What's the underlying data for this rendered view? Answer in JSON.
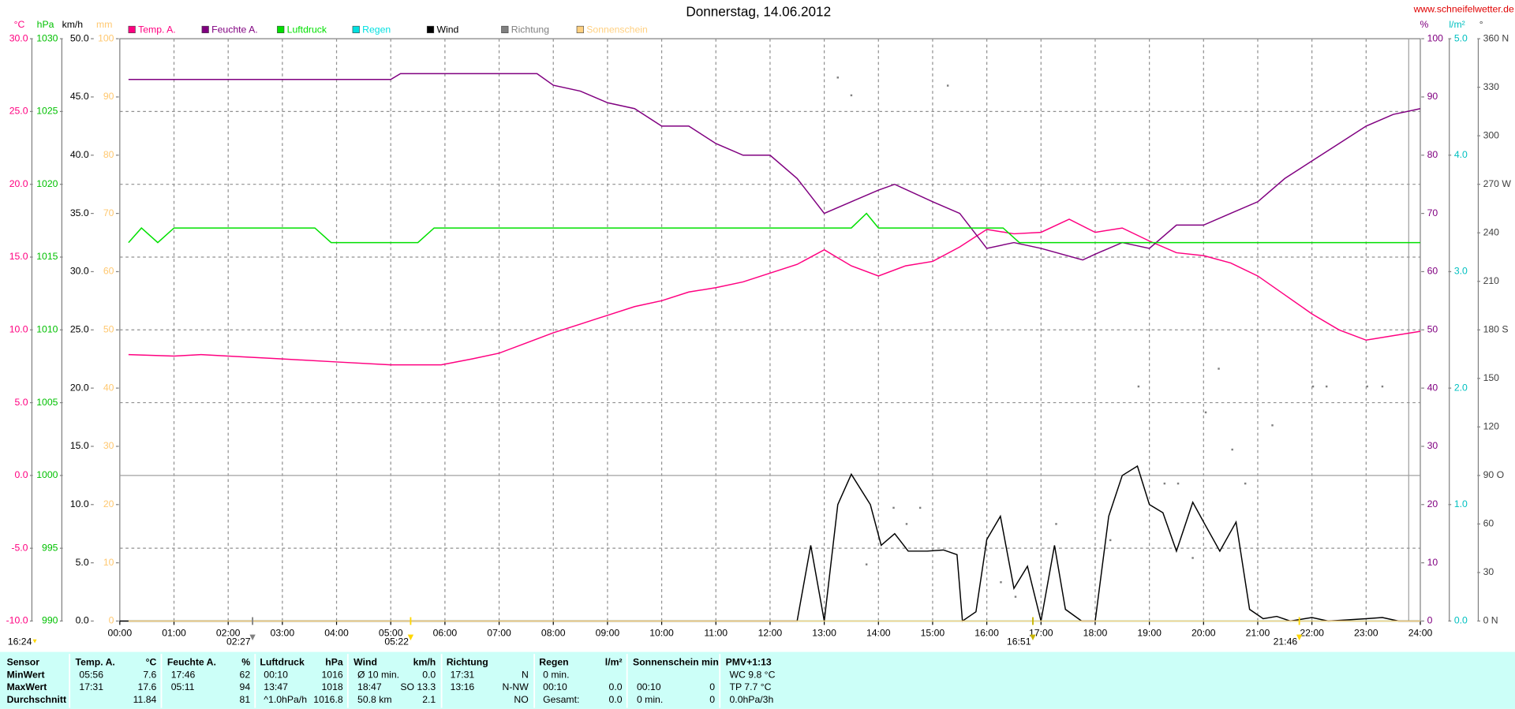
{
  "chart_data": {
    "type": "line",
    "title": "Donnerstag, 14.06.2012",
    "source": "www.schneifelwetter.de",
    "day_length": "16:24",
    "grid": true,
    "xlim": [
      0,
      24
    ],
    "xticks": [
      {
        "value": 0,
        "label": "00:00"
      },
      {
        "value": 1,
        "label": "01:00"
      },
      {
        "value": 2,
        "label": "02:00"
      },
      {
        "value": 3,
        "label": "03:00"
      },
      {
        "value": 4,
        "label": "04:00"
      },
      {
        "value": 5,
        "label": "05:00"
      },
      {
        "value": 6,
        "label": "06:00"
      },
      {
        "value": 7,
        "label": "07:00"
      },
      {
        "value": 8,
        "label": "08:00"
      },
      {
        "value": 9,
        "label": "09:00"
      },
      {
        "value": 10,
        "label": "10:00"
      },
      {
        "value": 11,
        "label": "11:00"
      },
      {
        "value": 12,
        "label": "12:00"
      },
      {
        "value": 13,
        "label": "13:00"
      },
      {
        "value": 14,
        "label": "14:00"
      },
      {
        "value": 15,
        "label": "15:00"
      },
      {
        "value": 16,
        "label": "16:00"
      },
      {
        "value": 17,
        "label": "17:00"
      },
      {
        "value": 18,
        "label": "18:00"
      },
      {
        "value": 19,
        "label": "19:00"
      },
      {
        "value": 20,
        "label": "20:00"
      },
      {
        "value": 21,
        "label": "21:00"
      },
      {
        "value": 22,
        "label": "22:00"
      },
      {
        "value": 23,
        "label": "23:00"
      },
      {
        "value": 24,
        "label": "24:00"
      }
    ],
    "y_axes": [
      {
        "unit": "°C",
        "color": "#ff0080",
        "ylim": [
          -10,
          30
        ],
        "yticks": [
          {
            "value": 30,
            "label": "30.0"
          },
          {
            "value": 25,
            "label": "25.0"
          },
          {
            "value": 20,
            "label": "20.0"
          },
          {
            "value": 15,
            "label": "15.0"
          },
          {
            "value": 10,
            "label": "10.0"
          },
          {
            "value": 5,
            "label": "5.0"
          },
          {
            "value": 0,
            "label": "0.0"
          },
          {
            "value": -5,
            "label": "-5.0"
          },
          {
            "value": -10,
            "label": "-10.0"
          }
        ]
      },
      {
        "unit": "hPa",
        "color": "#00c000",
        "ylim": [
          990,
          1030
        ],
        "yticks": [
          1030,
          1025,
          1020,
          1015,
          1010,
          1005,
          1000,
          995,
          990
        ]
      },
      {
        "unit": "km/h",
        "color": "#000000",
        "ylim": [
          0,
          50
        ],
        "yticks": [
          {
            "value": 50,
            "label": "50.0"
          },
          {
            "value": 45,
            "label": "45.0"
          },
          {
            "value": 40,
            "label": "40.0"
          },
          {
            "value": 35,
            "label": "35.0"
          },
          {
            "value": 30,
            "label": "30.0"
          },
          {
            "value": 25,
            "label": "25.0"
          },
          {
            "value": 20,
            "label": "20.0"
          },
          {
            "value": 15,
            "label": "15.0"
          },
          {
            "value": 10,
            "label": "10.0"
          },
          {
            "value": 5,
            "label": "5.0"
          },
          {
            "value": 0,
            "label": "0.0"
          }
        ]
      },
      {
        "unit": "mm",
        "color": "#ffc870",
        "ylim": [
          0,
          100
        ],
        "yticks": [
          100,
          90,
          80,
          70,
          60,
          50,
          40,
          30,
          20,
          10,
          0
        ]
      },
      {
        "unit": "%",
        "color": "#800080",
        "ylim": [
          0,
          100
        ],
        "yticks": [
          100,
          90,
          80,
          70,
          60,
          50,
          40,
          30,
          20,
          10,
          0
        ]
      },
      {
        "unit": "l/m²",
        "color": "#00c0c0",
        "ylim": [
          0,
          5
        ],
        "yticks": [
          {
            "value": 5,
            "label": "5.0"
          },
          {
            "value": 4,
            "label": "4.0"
          },
          {
            "value": 3,
            "label": "3.0"
          },
          {
            "value": 2,
            "label": "2.0"
          },
          {
            "value": 1,
            "label": "1.0"
          },
          {
            "value": 0,
            "label": "0.0"
          }
        ]
      },
      {
        "unit": "°",
        "color": "#404040",
        "ylim": [
          0,
          360
        ],
        "yticks": [
          {
            "value": 360,
            "label": "360 N"
          },
          330,
          300,
          {
            "value": 270,
            "label": "270 W"
          },
          240,
          210,
          {
            "value": 180,
            "label": "180 S"
          },
          150,
          120,
          {
            "value": 90,
            "label": "90 O"
          },
          60,
          30,
          {
            "value": 0,
            "label": "0 N"
          }
        ]
      }
    ],
    "series": [
      {
        "name": "Temp. A.",
        "color": "#ff0080",
        "axis": 0,
        "type": "line",
        "x": [
          0.16,
          1,
          1.5,
          2,
          3,
          4,
          5,
          5.93,
          6.5,
          7,
          7.5,
          8,
          8.5,
          9,
          9.5,
          10,
          10.5,
          11,
          11.5,
          12,
          12.5,
          13,
          13.5,
          14,
          14.5,
          15,
          15.5,
          16,
          16.5,
          17,
          17.52,
          18,
          18.5,
          19,
          19.5,
          20,
          20.5,
          21,
          21.5,
          22,
          22.5,
          23,
          23.5,
          24
        ],
        "values": [
          8.3,
          8.2,
          8.3,
          8.2,
          8,
          7.8,
          7.6,
          7.6,
          8,
          8.4,
          9.1,
          9.8,
          10.4,
          11,
          11.6,
          12,
          12.6,
          12.9,
          13.3,
          13.9,
          14.5,
          15.5,
          14.4,
          13.7,
          14.4,
          14.7,
          15.7,
          16.9,
          16.6,
          16.7,
          17.6,
          16.7,
          17,
          16.1,
          15.3,
          15.1,
          14.6,
          13.7,
          12.4,
          11.1,
          10,
          9.3,
          9.6,
          9.9
        ]
      },
      {
        "name": "Feuchte A.",
        "color": "#800080",
        "axis": 4,
        "type": "line",
        "x": [
          0.16,
          1,
          2,
          3,
          4,
          5,
          5.18,
          6,
          7,
          7.7,
          8,
          8.5,
          9,
          9.5,
          10,
          10.5,
          11,
          11.5,
          12,
          12.5,
          12.75,
          13,
          13.5,
          14,
          14.3,
          15,
          15.5,
          16,
          16.5,
          17,
          17.77,
          18,
          18.5,
          19,
          19.5,
          20,
          20.5,
          21,
          21.5,
          22,
          22.5,
          23,
          23.5,
          24
        ],
        "values": [
          93,
          93,
          93,
          93,
          93,
          93,
          94,
          94,
          94,
          94,
          92,
          91,
          89,
          88,
          85,
          85,
          82,
          80,
          80,
          76,
          73,
          70,
          72,
          74,
          75,
          72,
          70,
          64,
          65,
          64,
          62,
          63,
          65,
          64,
          68,
          68,
          70,
          72,
          76,
          79,
          82,
          85,
          87,
          88
        ]
      },
      {
        "name": "Luftdruck",
        "color": "#00e000",
        "axis": 1,
        "type": "line",
        "x": [
          0.16,
          0.4,
          0.7,
          1,
          3.6,
          3.9,
          5.5,
          5.8,
          13.5,
          13.78,
          14,
          16.3,
          16.6,
          24
        ],
        "values": [
          1016,
          1017,
          1016,
          1017,
          1017,
          1016,
          1016,
          1017,
          1017,
          1018,
          1017,
          1017,
          1016,
          1016
        ]
      },
      {
        "name": "Regen",
        "color": "#00e0e0",
        "axis": 5,
        "type": "line",
        "x": [
          0.16,
          24
        ],
        "values": [
          0,
          0
        ]
      },
      {
        "name": "Wind",
        "color": "#000000",
        "axis": 2,
        "type": "line",
        "x": [
          0,
          12.5,
          12.75,
          13,
          13.25,
          13.5,
          13.85,
          14.05,
          14.3,
          14.55,
          14.9,
          15.2,
          15.45,
          15.55,
          15.8,
          16,
          16.25,
          16.5,
          16.75,
          17,
          17.25,
          17.45,
          17.75,
          18,
          18.25,
          18.5,
          18.78,
          19,
          19.25,
          19.5,
          19.8,
          20,
          20.3,
          20.6,
          20.85,
          21.1,
          21.35,
          21.6,
          22,
          22.3,
          23,
          23.3,
          23.6,
          24
        ],
        "values": [
          0,
          0,
          6.5,
          0,
          10,
          12.6,
          10,
          6.5,
          7.5,
          6,
          6,
          6.1,
          5.7,
          0,
          0.8,
          7,
          9,
          2.8,
          4.7,
          0,
          6.5,
          1,
          0,
          0,
          9,
          12.5,
          13.3,
          10,
          9.3,
          6,
          10.2,
          8.5,
          6,
          8.5,
          1,
          0.2,
          0.4,
          0,
          0.3,
          0,
          0.2,
          0.3,
          0,
          0
        ]
      },
      {
        "name": "Richtung",
        "color": "#808080",
        "axis": 6,
        "type": "scatter",
        "x": [
          13.25,
          13.5,
          15.28,
          13.78,
          14.28,
          14.52,
          14.77,
          16.26,
          16.53,
          17.28,
          18.28,
          18.8,
          19.28,
          19.53,
          19.8,
          20.04,
          20.28,
          20.53,
          20.77,
          21.27,
          22.02,
          22.27,
          23.02,
          23.3
        ],
        "values": [
          336,
          325,
          331,
          35,
          70,
          60,
          70,
          24,
          15,
          60,
          50,
          145,
          85,
          85,
          39,
          129,
          156,
          106,
          85,
          121,
          145,
          145,
          145,
          145
        ]
      },
      {
        "name": "Sonnenschein",
        "color": "#ffd080",
        "axis": 3,
        "type": "line",
        "x": [
          0.16,
          24
        ],
        "values": [
          0,
          0
        ]
      }
    ],
    "annotations": [
      {
        "x": 2.45,
        "label": "02:27",
        "color": "#808080"
      },
      {
        "x": 5.367,
        "label": "05:22",
        "color": "#ffd700"
      },
      {
        "x": 16.85,
        "label": "16:51",
        "color": "#c8b400"
      },
      {
        "x": 21.767,
        "label": "21:46",
        "color": "#ffd700"
      }
    ]
  },
  "table": {
    "sensor": {
      "header": "Sensor",
      "rows": [
        "MinWert",
        "MaxWert",
        "Durchschnitt"
      ]
    },
    "groups": [
      {
        "header": "Temp. A.",
        "unit": "°C",
        "rows": [
          [
            "05:56",
            "7.6"
          ],
          [
            "17:31",
            "17.6"
          ],
          [
            null,
            "11.84"
          ]
        ]
      },
      {
        "header": "Feuchte A.",
        "unit": "%",
        "rows": [
          [
            "17:46",
            "62"
          ],
          [
            "05:11",
            "94"
          ],
          [
            null,
            "81"
          ]
        ]
      },
      {
        "header": "Luftdruck",
        "unit": "hPa",
        "rows": [
          [
            "00:10",
            "1016"
          ],
          [
            "13:47",
            "1018"
          ],
          [
            "^1.0hPa/h",
            "1016.8"
          ]
        ]
      },
      {
        "header": "Wind",
        "unit": "km/h",
        "rows": [
          [
            "Ø 10 min.",
            "0.0"
          ],
          [
            "18:47",
            "SO 13.3"
          ],
          [
            "50.8 km",
            "2.1"
          ]
        ]
      },
      {
        "header": "Richtung",
        "rows": [
          [
            "17:31",
            "N"
          ],
          [
            "13:16",
            "N-NW"
          ],
          [
            null,
            "NO"
          ]
        ]
      },
      {
        "header": "Regen",
        "unit": "l/m²",
        "rows": [
          [
            "0 min.",
            null
          ],
          [
            "00:10",
            "0.0"
          ],
          [
            "Gesamt:",
            "0.0"
          ]
        ]
      },
      {
        "header": "Sonnenschein min",
        "rows": [
          [
            null,
            null
          ],
          [
            "00:10",
            "0"
          ],
          [
            "0 min.",
            "0"
          ]
        ]
      },
      {
        "header": "PMV+1:13",
        "rows": [
          [
            "WC 9.8 °C",
            null
          ],
          [
            "TP 7.7 °C",
            null
          ],
          [
            "0.0hPa/3h",
            null
          ]
        ]
      }
    ]
  }
}
